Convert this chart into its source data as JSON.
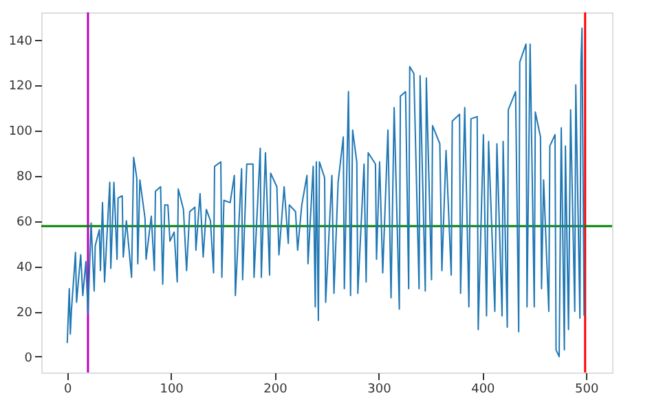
{
  "chart_data": {
    "type": "line",
    "x": [
      0,
      2,
      3,
      4,
      8,
      9,
      13,
      15,
      18,
      20,
      23,
      26,
      27,
      31,
      32,
      34,
      36,
      41,
      42,
      45,
      48,
      49,
      53,
      54,
      57,
      62,
      64,
      67,
      68,
      70,
      75,
      76,
      81,
      84,
      85,
      90,
      92,
      94,
      97,
      99,
      103,
      106,
      107,
      112,
      115,
      118,
      123,
      124,
      128,
      131,
      134,
      138,
      141,
      142,
      148,
      149,
      151,
      157,
      161,
      162,
      168,
      169,
      173,
      179,
      180,
      186,
      187,
      191,
      195,
      196,
      202,
      204,
      209,
      213,
      214,
      220,
      222,
      226,
      231,
      232,
      237,
      239,
      240,
      242,
      243,
      248,
      249,
      255,
      257,
      261,
      266,
      267,
      271,
      273,
      275,
      279,
      280,
      286,
      288,
      290,
      297,
      298,
      301,
      304,
      309,
      312,
      315,
      320,
      321,
      326,
      329,
      330,
      334,
      339,
      340,
      345,
      346,
      351,
      352,
      359,
      361,
      365,
      370,
      371,
      378,
      379,
      383,
      387,
      389,
      395,
      396,
      401,
      404,
      406,
      412,
      414,
      419,
      420,
      424,
      425,
      432,
      435,
      436,
      442,
      443,
      446,
      450,
      451,
      456,
      457,
      459,
      464,
      465,
      470,
      471,
      474,
      476,
      479,
      480,
      483,
      485,
      489,
      490,
      494,
      495,
      496,
      498
    ],
    "series": [
      {
        "color": "#1f77b4",
        "values": [
          6,
          30,
          10,
          20,
          46,
          24,
          45,
          27,
          42,
          19,
          59,
          29,
          49,
          56,
          38,
          68,
          33,
          77,
          39,
          77,
          43,
          70,
          71,
          44,
          60,
          35,
          88,
          79,
          41,
          78,
          61,
          43,
          62,
          38,
          73,
          75,
          32,
          67,
          67,
          51,
          55,
          33,
          74,
          65,
          38,
          64,
          66,
          47,
          72,
          44,
          65,
          60,
          37,
          84,
          86,
          35,
          69,
          68,
          80,
          27,
          83,
          34,
          85,
          85,
          35,
          92,
          35,
          90,
          36,
          81,
          75,
          45,
          75,
          50,
          67,
          64,
          47,
          67,
          80,
          41,
          84,
          22,
          86,
          16,
          86,
          79,
          24,
          80,
          28,
          77,
          97,
          30,
          117,
          27,
          100,
          86,
          28,
          85,
          33,
          90,
          85,
          43,
          86,
          37,
          100,
          26,
          110,
          21,
          115,
          117,
          30,
          128,
          125,
          30,
          124,
          29,
          123,
          34,
          102,
          94,
          38,
          91,
          36,
          104,
          107,
          28,
          110,
          22,
          105,
          106,
          12,
          98,
          18,
          95,
          20,
          94,
          18,
          95,
          13,
          109,
          117,
          11,
          130,
          138,
          22,
          138,
          22,
          108,
          97,
          30,
          78,
          20,
          93,
          98,
          3,
          0,
          101,
          3,
          93,
          12,
          109,
          20,
          120,
          17,
          130,
          145,
          18
        ]
      }
    ],
    "xlim": [
      -25,
      525
    ],
    "ylim": [
      -7,
      152
    ],
    "xticks": [
      0,
      100,
      200,
      300,
      400,
      500
    ],
    "yticks": [
      0,
      20,
      40,
      60,
      80,
      100,
      120,
      140
    ],
    "ref_lines": [
      {
        "axis": "x",
        "value": 20,
        "color": "#bf00bf"
      },
      {
        "axis": "x",
        "value": 499,
        "color": "#ff0000"
      },
      {
        "axis": "y",
        "value": 57.6,
        "color": "#008000"
      }
    ],
    "grid": false
  }
}
